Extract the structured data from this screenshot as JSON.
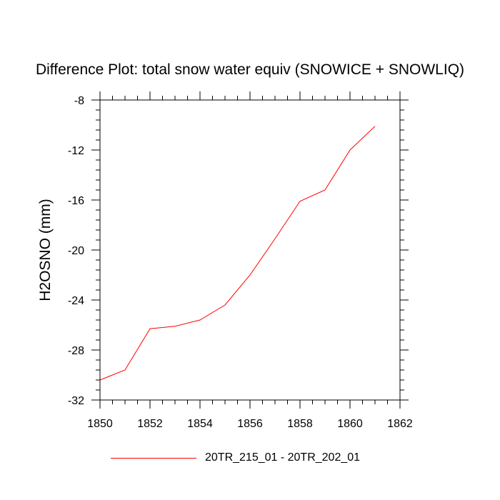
{
  "chart_data": {
    "type": "line",
    "title": "Difference Plot: total snow water equiv (SNOWICE + SNOWLIQ)",
    "xlabel": "",
    "ylabel": "H2OSNO  (mm)",
    "xlim": [
      1850,
      1862
    ],
    "ylim": [
      -32,
      -8
    ],
    "xticks": [
      1850,
      1852,
      1854,
      1856,
      1858,
      1860,
      1862
    ],
    "yticks": [
      -32,
      -28,
      -24,
      -20,
      -16,
      -12,
      -8
    ],
    "grid": false,
    "legend_position": "bottom",
    "series": [
      {
        "name": "20TR_215_01 - 20TR_202_01",
        "color": "#ff0000",
        "x": [
          1850,
          1851,
          1852,
          1853,
          1854,
          1855,
          1856,
          1857,
          1858,
          1859,
          1860,
          1861
        ],
        "y": [
          -30.4,
          -29.6,
          -26.3,
          -26.1,
          -25.6,
          -24.4,
          -22.0,
          -19.1,
          -16.1,
          -15.2,
          -12.0,
          -10.1
        ]
      }
    ]
  }
}
